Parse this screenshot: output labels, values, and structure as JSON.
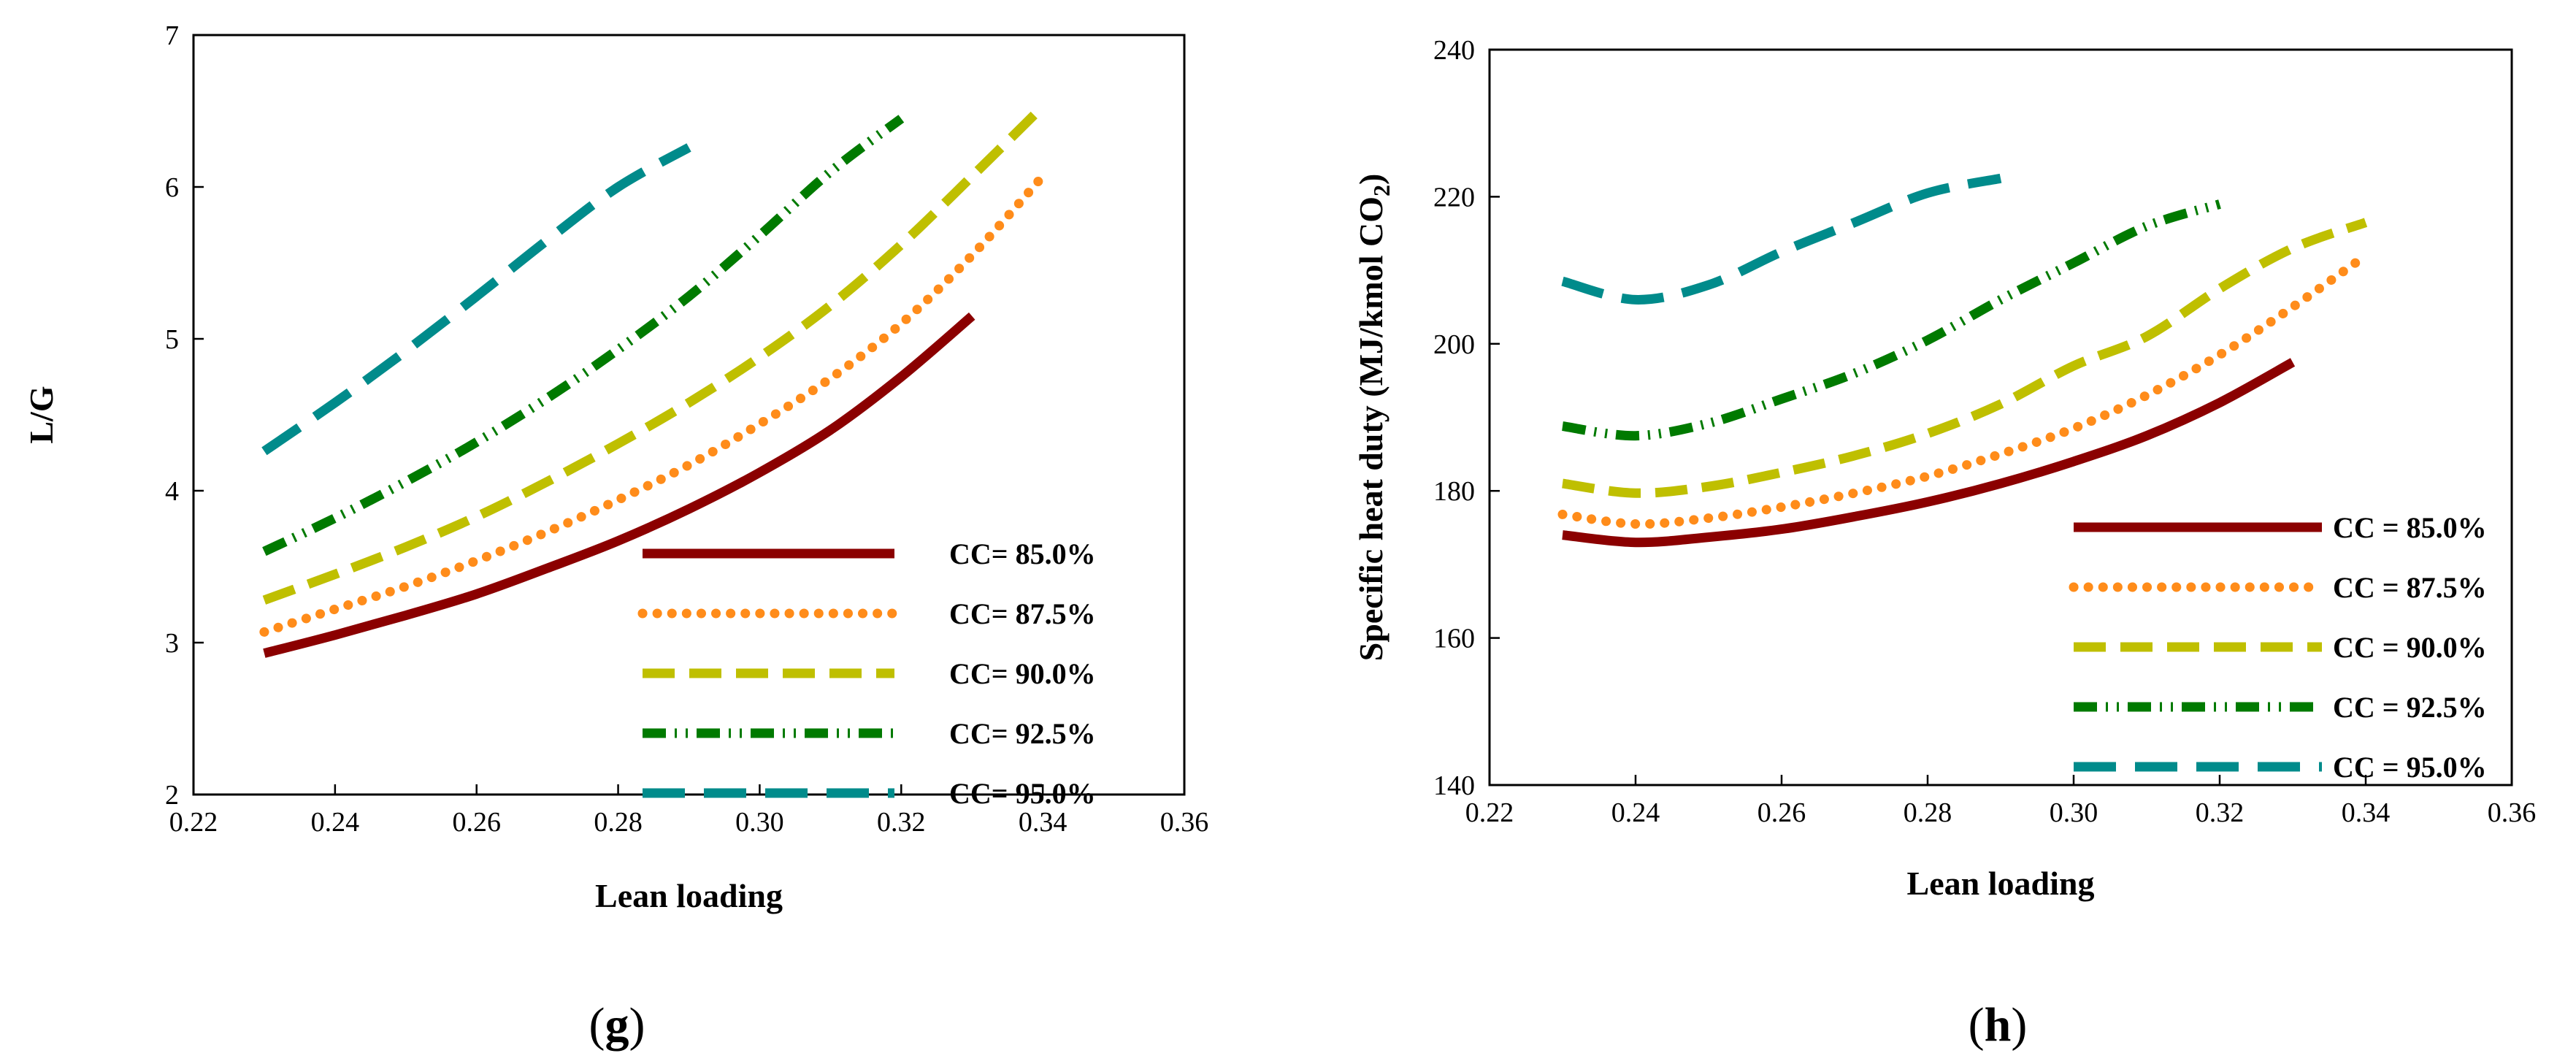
{
  "chart_data": [
    {
      "type": "line",
      "panel_label": "g",
      "title": "",
      "xlabel": "Lean loading",
      "ylabel": "L/G",
      "xlim": [
        0.22,
        0.36
      ],
      "ylim": [
        2,
        7
      ],
      "xticks": [
        0.22,
        0.24,
        0.26,
        0.28,
        0.3,
        0.32,
        0.34,
        0.36
      ],
      "xtick_labels": [
        "0.22",
        "0.24",
        "0.26",
        "0.28",
        "0.30",
        "0.32",
        "0.34",
        "0.36"
      ],
      "yticks": [
        2,
        3,
        4,
        5,
        6,
        7
      ],
      "ytick_labels": [
        "2",
        "3",
        "4",
        "5",
        "6",
        "7"
      ],
      "grid": false,
      "legend_position": "bottom-right",
      "series": [
        {
          "name": "CC= 85.0%",
          "color": "#8B0000",
          "style": "solid",
          "x": [
            0.23,
            0.24,
            0.25,
            0.26,
            0.27,
            0.28,
            0.29,
            0.3,
            0.31,
            0.32,
            0.33
          ],
          "y": [
            2.93,
            3.05,
            3.18,
            3.32,
            3.49,
            3.67,
            3.88,
            4.12,
            4.4,
            4.75,
            5.15
          ]
        },
        {
          "name": "CC= 87.5%",
          "color": "#FF8C1A",
          "style": "dotted",
          "x": [
            0.23,
            0.24,
            0.25,
            0.26,
            0.27,
            0.28,
            0.29,
            0.3,
            0.31,
            0.32,
            0.33,
            0.34
          ],
          "y": [
            3.07,
            3.22,
            3.37,
            3.54,
            3.73,
            3.94,
            4.17,
            4.44,
            4.74,
            5.1,
            5.55,
            6.07
          ]
        },
        {
          "name": "CC= 90.0%",
          "color": "#BFBF00",
          "style": "dashed",
          "x": [
            0.23,
            0.24,
            0.25,
            0.26,
            0.27,
            0.28,
            0.29,
            0.3,
            0.31,
            0.32,
            0.33,
            0.34
          ],
          "y": [
            3.28,
            3.45,
            3.63,
            3.83,
            4.06,
            4.31,
            4.58,
            4.88,
            5.22,
            5.62,
            6.07,
            6.53
          ]
        },
        {
          "name": "CC= 92.5%",
          "color": "#007A00",
          "style": "dash-dot-dot",
          "x": [
            0.23,
            0.24,
            0.25,
            0.26,
            0.27,
            0.28,
            0.29,
            0.3,
            0.31,
            0.32
          ],
          "y": [
            3.6,
            3.82,
            4.06,
            4.32,
            4.61,
            4.93,
            5.28,
            5.68,
            6.1,
            6.45
          ]
        },
        {
          "name": "CC= 95.0%",
          "color": "#008B8B",
          "style": "long-dash",
          "x": [
            0.23,
            0.24,
            0.25,
            0.26,
            0.27,
            0.28,
            0.29
          ],
          "y": [
            4.26,
            4.58,
            4.92,
            5.28,
            5.65,
            6.0,
            6.26
          ]
        }
      ]
    },
    {
      "type": "line",
      "panel_label": "h",
      "title": "",
      "xlabel": "Lean loading",
      "ylabel_main": "Specific heat duty (MJ/kmol CO",
      "ylabel_sub": "2",
      "ylabel_close": ")",
      "xlim": [
        0.22,
        0.36
      ],
      "ylim": [
        140,
        240
      ],
      "xticks": [
        0.22,
        0.24,
        0.26,
        0.28,
        0.3,
        0.32,
        0.34,
        0.36
      ],
      "xtick_labels": [
        "0.22",
        "0.24",
        "0.26",
        "0.28",
        "0.30",
        "0.32",
        "0.34",
        "0.36"
      ],
      "yticks": [
        140,
        160,
        180,
        200,
        220,
        240
      ],
      "ytick_labels": [
        "140",
        "160",
        "180",
        "200",
        "220",
        "240"
      ],
      "grid": false,
      "legend_position": "bottom-right",
      "series": [
        {
          "name": "CC = 85.0%",
          "color": "#8B0000",
          "style": "solid",
          "x": [
            0.23,
            0.24,
            0.25,
            0.26,
            0.27,
            0.28,
            0.29,
            0.3,
            0.31,
            0.32,
            0.33
          ],
          "y": [
            174.0,
            173.0,
            173.7,
            174.8,
            176.5,
            178.5,
            181.0,
            184.0,
            187.5,
            192.0,
            197.5
          ]
        },
        {
          "name": "CC = 87.5%",
          "color": "#FF8C1A",
          "style": "dotted",
          "x": [
            0.23,
            0.24,
            0.25,
            0.26,
            0.27,
            0.28,
            0.29,
            0.3,
            0.31,
            0.32,
            0.33,
            0.34
          ],
          "y": [
            176.8,
            175.5,
            176.3,
            177.8,
            179.7,
            182.0,
            185.0,
            188.5,
            193.0,
            198.5,
            205.0,
            212.0
          ]
        },
        {
          "name": "CC = 90.0%",
          "color": "#BFBF00",
          "style": "dashed",
          "x": [
            0.23,
            0.24,
            0.25,
            0.26,
            0.27,
            0.28,
            0.29,
            0.3,
            0.31,
            0.32,
            0.33,
            0.34
          ],
          "y": [
            181.0,
            179.7,
            180.6,
            182.5,
            184.8,
            187.8,
            191.8,
            197.0,
            201.0,
            207.5,
            213.0,
            216.5
          ]
        },
        {
          "name": "CC = 92.5%",
          "color": "#007A00",
          "style": "dash-dot-dot",
          "x": [
            0.23,
            0.24,
            0.25,
            0.26,
            0.27,
            0.28,
            0.29,
            0.3,
            0.31,
            0.32
          ],
          "y": [
            188.8,
            187.5,
            189.2,
            192.5,
            196.0,
            200.5,
            206.0,
            211.0,
            216.0,
            219.0
          ]
        },
        {
          "name": "CC = 95.0%",
          "color": "#008B8B",
          "style": "long-dash",
          "x": [
            0.23,
            0.24,
            0.25,
            0.26,
            0.27,
            0.28,
            0.29
          ],
          "y": [
            208.5,
            206.0,
            208.0,
            212.5,
            216.5,
            220.5,
            222.5
          ]
        }
      ]
    }
  ]
}
